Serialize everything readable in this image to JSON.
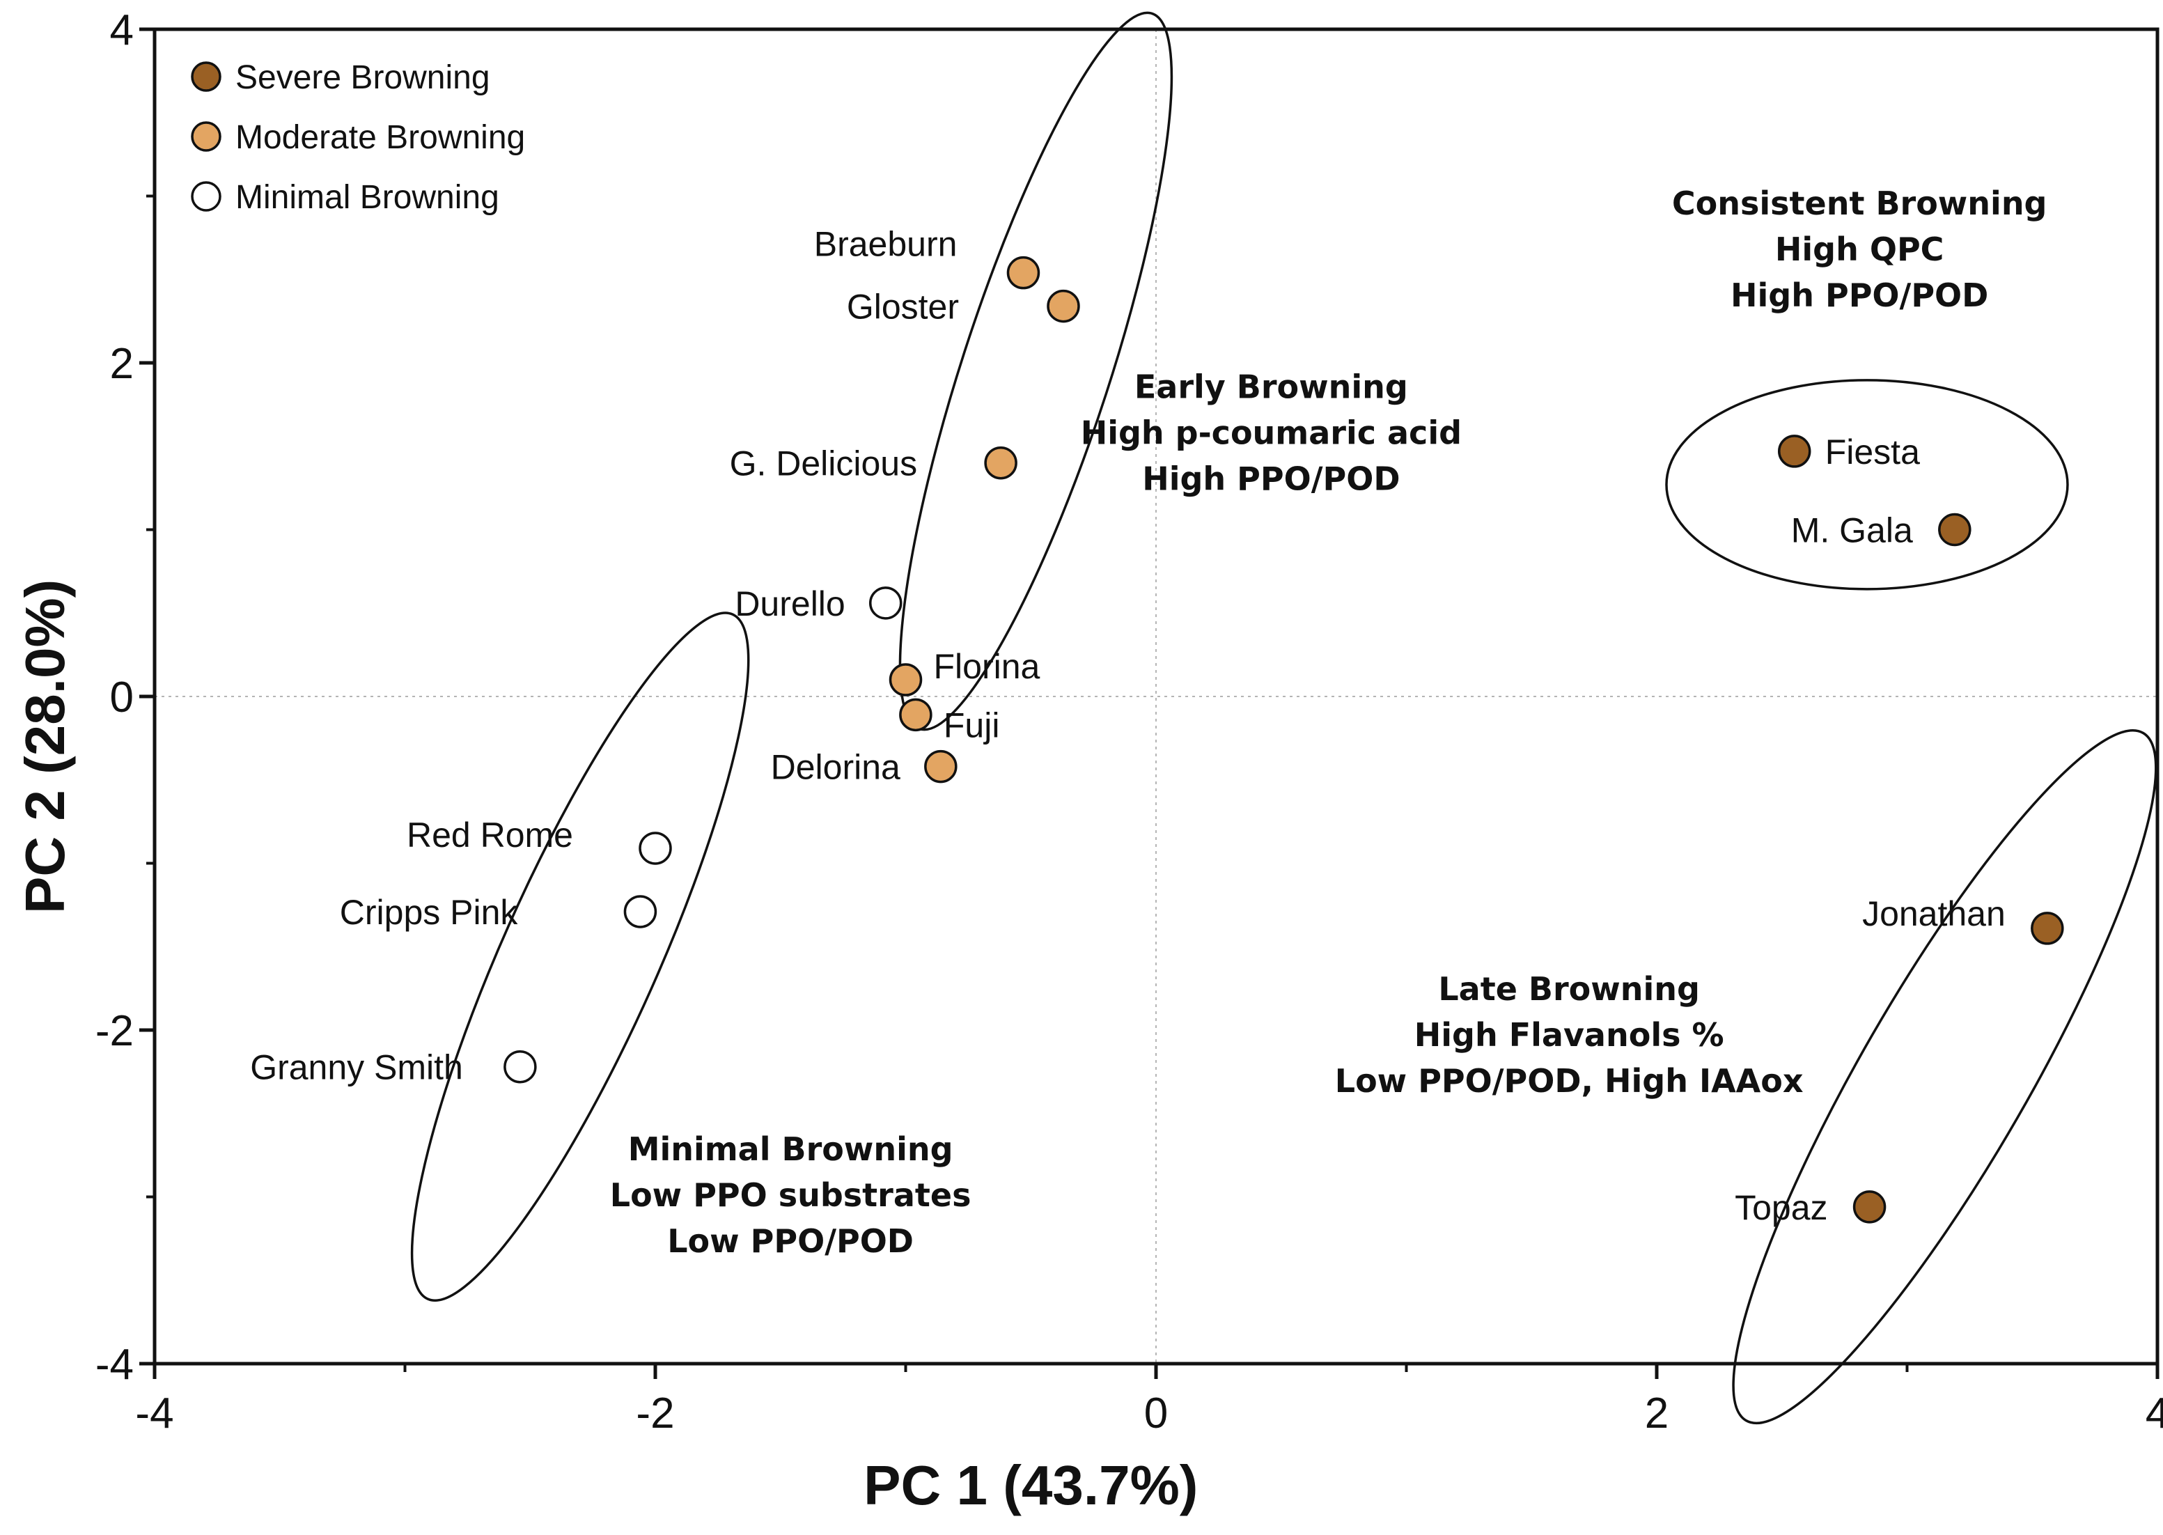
{
  "chart_data": {
    "type": "scatter",
    "xlabel": "PC 1 (43.7%)",
    "ylabel": "PC 2 (28.0%)",
    "xlim": [
      -4,
      4
    ],
    "ylim": [
      -4,
      4
    ],
    "xticks": [
      "-4",
      "-2",
      "0",
      "2",
      "4"
    ],
    "yticks": [
      "4",
      "2",
      "0",
      "-2",
      "-4"
    ],
    "grid": "dotted zero lines",
    "legend_position": "top-left",
    "colors": {
      "Severe Browning": "#9a6024",
      "Moderate Browning": "#e3a562",
      "Minimal Browning": "#ffffff"
    },
    "legend": [
      "Severe Browning",
      "Moderate Browning",
      "Minimal Browning"
    ],
    "points": [
      {
        "label": "Braeburn",
        "x": -0.53,
        "y": 2.54,
        "group": "Moderate Browning"
      },
      {
        "label": "Gloster",
        "x": -0.37,
        "y": 2.34,
        "group": "Moderate Browning"
      },
      {
        "label": "G. Delicious",
        "x": -0.62,
        "y": 1.4,
        "group": "Moderate Browning"
      },
      {
        "label": "Durello",
        "x": -1.08,
        "y": 0.56,
        "group": "Minimal Browning"
      },
      {
        "label": "Florina",
        "x": -1.0,
        "y": 0.1,
        "group": "Moderate Browning"
      },
      {
        "label": "Fuji",
        "x": -0.96,
        "y": -0.11,
        "group": "Moderate Browning"
      },
      {
        "label": "Delorina",
        "x": -0.86,
        "y": -0.42,
        "group": "Moderate Browning"
      },
      {
        "label": "Red Rome",
        "x": -2.0,
        "y": -0.91,
        "group": "Minimal Browning"
      },
      {
        "label": "Cripps Pink",
        "x": -2.06,
        "y": -1.29,
        "group": "Minimal Browning"
      },
      {
        "label": "Granny Smith",
        "x": -2.54,
        "y": -2.22,
        "group": "Minimal Browning"
      },
      {
        "label": "Fiesta",
        "x": 2.55,
        "y": 1.47,
        "group": "Severe Browning"
      },
      {
        "label": "M. Gala",
        "x": 3.19,
        "y": 1.0,
        "group": "Severe Browning"
      },
      {
        "label": "Jonathan",
        "x": 3.56,
        "y": -1.39,
        "group": "Severe Browning"
      },
      {
        "label": "Topaz",
        "x": 2.85,
        "y": -3.06,
        "group": "Severe Browning"
      }
    ],
    "annotations": [
      {
        "lines": [
          "Consistent Browning",
          "High QPC",
          "High PPO/POD"
        ]
      },
      {
        "lines": [
          "Early Browning",
          "High p-coumaric acid",
          "High PPO/POD"
        ]
      },
      {
        "lines": [
          "Minimal Browning",
          "Low PPO substrates",
          "Low PPO/POD"
        ]
      },
      {
        "lines": [
          "Late Browning",
          "High Flavanols %",
          "Low PPO/POD, High IAAox"
        ]
      }
    ]
  }
}
